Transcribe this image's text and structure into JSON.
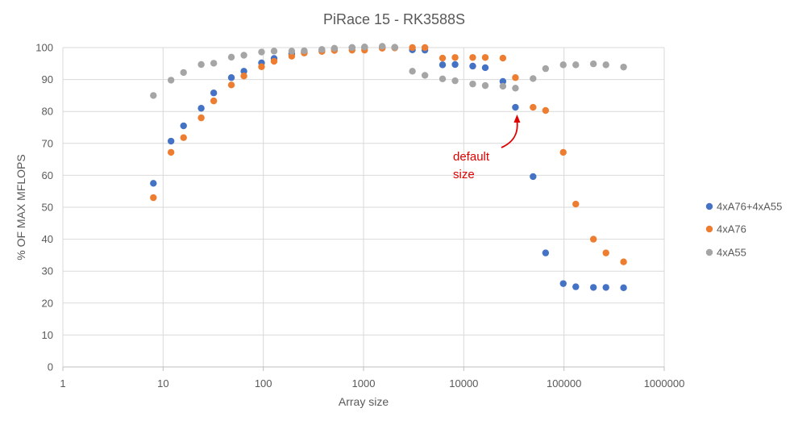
{
  "chart_data": {
    "type": "scatter",
    "title": "PiRace 15 - RK3588S",
    "xlabel": "Array size",
    "ylabel": "% OF MAX MFLOPS",
    "xscale": "log",
    "xlim": [
      1,
      1000000
    ],
    "ylim": [
      0,
      100
    ],
    "x_ticks": [
      1,
      10,
      100,
      1000,
      10000,
      100000,
      1000000
    ],
    "x_tick_labels": [
      "1",
      "10",
      "100",
      "1000",
      "10000",
      "100000",
      "1000000"
    ],
    "y_ticks": [
      0,
      10,
      20,
      30,
      40,
      50,
      60,
      70,
      80,
      90,
      100
    ],
    "y_tick_labels": [
      "0",
      "10",
      "20",
      "30",
      "40",
      "50",
      "60",
      "70",
      "80",
      "90",
      "100"
    ],
    "grid": true,
    "legend_position": "right",
    "series": [
      {
        "name": "4xA76+4xA55",
        "color": "#4472c4",
        "points": [
          [
            8,
            57.5
          ],
          [
            12,
            70.7
          ],
          [
            16,
            75.5
          ],
          [
            24,
            81
          ],
          [
            32,
            85.8
          ],
          [
            48,
            90.6
          ],
          [
            64,
            92.6
          ],
          [
            96,
            95.2
          ],
          [
            128,
            96.6
          ],
          [
            192,
            98
          ],
          [
            256,
            98.6
          ],
          [
            384,
            99.3
          ],
          [
            512,
            99.6
          ],
          [
            768,
            100
          ],
          [
            1024,
            100
          ],
          [
            1536,
            100
          ],
          [
            2048,
            100
          ],
          [
            3072,
            99.3
          ],
          [
            4096,
            99.2
          ],
          [
            6144,
            94.6
          ],
          [
            8192,
            94.7
          ],
          [
            12288,
            94.2
          ],
          [
            16384,
            93.7
          ],
          [
            24576,
            89.4
          ],
          [
            32768,
            81.3
          ],
          [
            49152,
            59.6
          ],
          [
            65536,
            35.7
          ],
          [
            98304,
            26.1
          ],
          [
            131072,
            25.1
          ],
          [
            196608,
            24.9
          ],
          [
            262144,
            24.9
          ],
          [
            393216,
            24.8
          ]
        ]
      },
      {
        "name": "4xA76",
        "color": "#ed7d31",
        "points": [
          [
            8,
            53
          ],
          [
            12,
            67.2
          ],
          [
            16,
            71.8
          ],
          [
            24,
            78
          ],
          [
            32,
            83.3
          ],
          [
            48,
            88.3
          ],
          [
            64,
            91.1
          ],
          [
            96,
            94
          ],
          [
            128,
            95.7
          ],
          [
            192,
            97.3
          ],
          [
            256,
            98.3
          ],
          [
            384,
            98.8
          ],
          [
            512,
            99.1
          ],
          [
            768,
            99.2
          ],
          [
            1024,
            99.2
          ],
          [
            1536,
            99.8
          ],
          [
            2048,
            99.9
          ],
          [
            3072,
            100
          ],
          [
            4096,
            100
          ],
          [
            6144,
            96.7
          ],
          [
            8192,
            96.9
          ],
          [
            12288,
            96.9
          ],
          [
            16384,
            96.9
          ],
          [
            24576,
            96.7
          ],
          [
            32768,
            90.6
          ],
          [
            49152,
            81.3
          ],
          [
            65536,
            80.3
          ],
          [
            98304,
            67.2
          ],
          [
            131072,
            51
          ],
          [
            196608,
            40
          ],
          [
            262144,
            35.7
          ],
          [
            393216,
            32.9
          ]
        ]
      },
      {
        "name": "4xA55",
        "color": "#a5a5a5",
        "points": [
          [
            8,
            85
          ],
          [
            12,
            89.8
          ],
          [
            16,
            92.2
          ],
          [
            24,
            94.7
          ],
          [
            32,
            95.1
          ],
          [
            48,
            97
          ],
          [
            64,
            97.6
          ],
          [
            96,
            98.6
          ],
          [
            128,
            98.9
          ],
          [
            192,
            98.9
          ],
          [
            256,
            99
          ],
          [
            384,
            99.4
          ],
          [
            512,
            99.8
          ],
          [
            768,
            100
          ],
          [
            1024,
            100.2
          ],
          [
            1536,
            100.4
          ],
          [
            2048,
            100.1
          ],
          [
            3072,
            92.6
          ],
          [
            4096,
            91.3
          ],
          [
            6144,
            90.2
          ],
          [
            8192,
            89.6
          ],
          [
            12288,
            88.6
          ],
          [
            16384,
            88.1
          ],
          [
            24576,
            87.9
          ],
          [
            32768,
            87.3
          ],
          [
            49152,
            90.3
          ],
          [
            65536,
            93.4
          ],
          [
            98304,
            94.6
          ],
          [
            131072,
            94.6
          ],
          [
            196608,
            94.9
          ],
          [
            262144,
            94.6
          ],
          [
            393216,
            93.9
          ]
        ]
      }
    ],
    "annotations": [
      {
        "text_lines": [
          "default",
          "size"
        ],
        "points_to": [
          32768,
          81.3
        ],
        "color": "#e00000"
      }
    ]
  }
}
